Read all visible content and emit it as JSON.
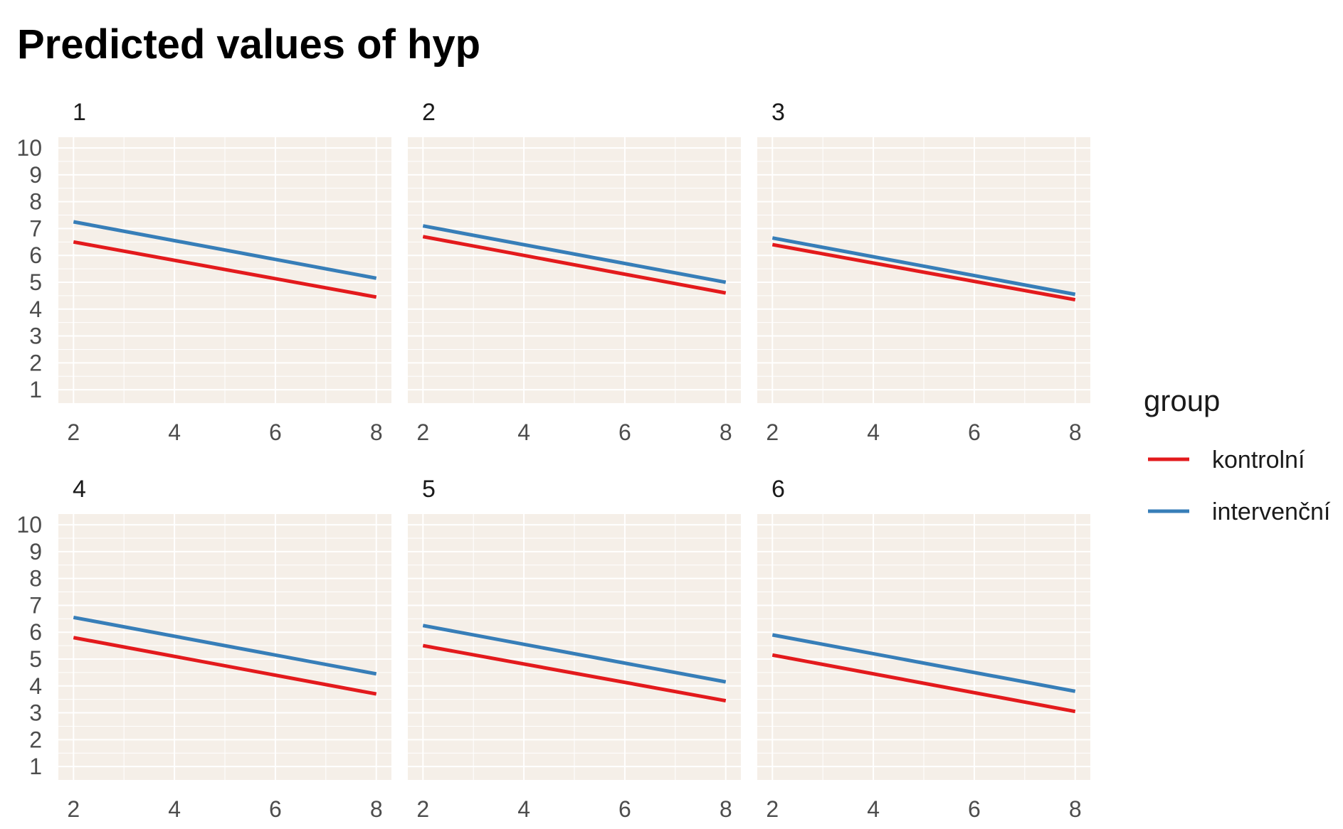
{
  "chart_data": {
    "type": "line",
    "title": "Predicted values of hyp",
    "xlabel": "",
    "ylabel": "",
    "x_ticks": [
      2,
      4,
      6,
      8
    ],
    "y_ticks": [
      1,
      2,
      3,
      4,
      5,
      6,
      7,
      8,
      9,
      10
    ],
    "xlim": [
      1.7,
      8.3
    ],
    "ylim": [
      0.5,
      10.4
    ],
    "grid": true,
    "panel_background": "#f5efe8",
    "legend": {
      "title": "group",
      "position": "right",
      "entries": [
        {
          "label": "kontrolní",
          "color": "#e31a1c"
        },
        {
          "label": "intervenční",
          "color": "#377eb8"
        }
      ]
    },
    "facets": [
      {
        "label": "1",
        "series": [
          {
            "name": "kontrolní",
            "x": [
              2,
              8
            ],
            "y": [
              6.5,
              4.45
            ]
          },
          {
            "name": "intervenční",
            "x": [
              2,
              8
            ],
            "y": [
              7.25,
              5.15
            ]
          }
        ]
      },
      {
        "label": "2",
        "series": [
          {
            "name": "kontrolní",
            "x": [
              2,
              8
            ],
            "y": [
              6.7,
              4.6
            ]
          },
          {
            "name": "intervenční",
            "x": [
              2,
              8
            ],
            "y": [
              7.1,
              5.0
            ]
          }
        ]
      },
      {
        "label": "3",
        "series": [
          {
            "name": "kontrolní",
            "x": [
              2,
              8
            ],
            "y": [
              6.4,
              4.35
            ]
          },
          {
            "name": "intervenční",
            "x": [
              2,
              8
            ],
            "y": [
              6.65,
              4.55
            ]
          }
        ]
      },
      {
        "label": "4",
        "series": [
          {
            "name": "kontrolní",
            "x": [
              2,
              8
            ],
            "y": [
              5.8,
              3.7
            ]
          },
          {
            "name": "intervenční",
            "x": [
              2,
              8
            ],
            "y": [
              6.55,
              4.45
            ]
          }
        ]
      },
      {
        "label": "5",
        "series": [
          {
            "name": "kontrolní",
            "x": [
              2,
              8
            ],
            "y": [
              5.5,
              3.45
            ]
          },
          {
            "name": "intervenční",
            "x": [
              2,
              8
            ],
            "y": [
              6.25,
              4.15
            ]
          }
        ]
      },
      {
        "label": "6",
        "series": [
          {
            "name": "kontrolní",
            "x": [
              2,
              8
            ],
            "y": [
              5.15,
              3.05
            ]
          },
          {
            "name": "intervenční",
            "x": [
              2,
              8
            ],
            "y": [
              5.9,
              3.8
            ]
          }
        ]
      }
    ]
  }
}
